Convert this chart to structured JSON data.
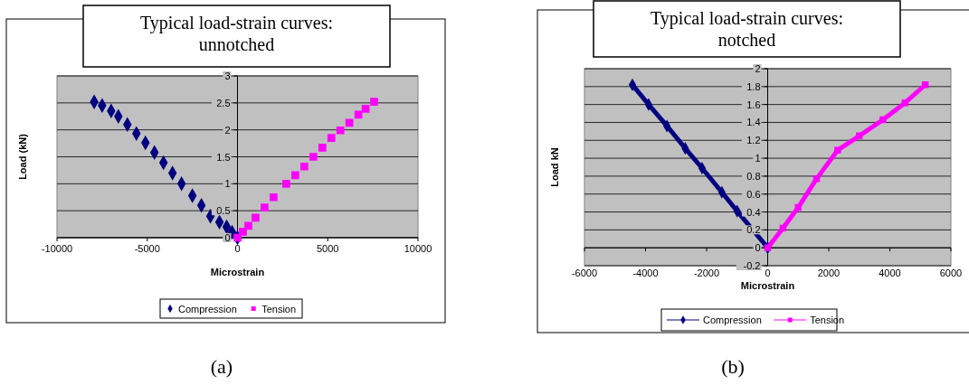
{
  "chart_data": [
    {
      "type": "scatter",
      "title": "Typical load-strain curves: unnotched",
      "xlabel": "Microstrain",
      "ylabel": "Load (kN)",
      "xlim": [
        -10000,
        10000
      ],
      "xticks": [
        -10000,
        -5000,
        0,
        5000,
        10000
      ],
      "ylim": [
        0,
        3
      ],
      "yticks": [
        0,
        0.5,
        1,
        1.5,
        2,
        2.5,
        3
      ],
      "grid": "y",
      "legend": "bottom",
      "annotations": [
        "(a)"
      ],
      "series": [
        {
          "name": "Compression",
          "color": "#000080",
          "marker": "diamond",
          "x": [
            0,
            -300,
            -600,
            -1000,
            -1500,
            -2000,
            -2500,
            -3100,
            -3600,
            -4100,
            -4600,
            -5100,
            -5600,
            -6100,
            -6600,
            -7000,
            -7500,
            -7940
          ],
          "values": [
            0,
            0.1,
            0.2,
            0.29,
            0.4,
            0.6,
            0.78,
            1.0,
            1.2,
            1.39,
            1.58,
            1.76,
            1.93,
            2.1,
            2.25,
            2.35,
            2.45,
            2.52
          ]
        },
        {
          "name": "Tension",
          "color": "#ff00ff",
          "marker": "square",
          "x": [
            0,
            300,
            600,
            1000,
            1500,
            2000,
            2700,
            3200,
            3700,
            4200,
            4700,
            5200,
            5700,
            6200,
            6700,
            7100,
            7570
          ],
          "values": [
            0,
            0.11,
            0.22,
            0.37,
            0.56,
            0.75,
            1.0,
            1.16,
            1.32,
            1.5,
            1.67,
            1.85,
            1.99,
            2.13,
            2.28,
            2.39,
            2.52
          ]
        }
      ]
    },
    {
      "type": "line",
      "title": "Typical load-strain curves: notched",
      "xlabel": "Microstrain",
      "ylabel": "Load kN",
      "xlim": [
        -6000,
        6000
      ],
      "xticks": [
        -6000,
        -4000,
        -2000,
        0,
        2000,
        4000,
        6000
      ],
      "ylim": [
        -0.2,
        2
      ],
      "yticks": [
        -0.2,
        0,
        0.2,
        0.4,
        0.6,
        0.8,
        1,
        1.2,
        1.4,
        1.6,
        1.8,
        2
      ],
      "grid": "y",
      "legend": "bottom",
      "annotations": [
        "(b)"
      ],
      "series": [
        {
          "name": "Compression",
          "color": "#000080",
          "marker": "diamond",
          "x": [
            0,
            -1000,
            -1500,
            -2150,
            -2700,
            -3300,
            -3900,
            -4430
          ],
          "values": [
            0,
            0.41,
            0.62,
            0.89,
            1.11,
            1.36,
            1.6,
            1.82
          ]
        },
        {
          "name": "Tension",
          "color": "#ff00ff",
          "marker": "square",
          "x": [
            0,
            500,
            1000,
            1600,
            2290,
            3000,
            3775,
            4500,
            5160
          ],
          "values": [
            0,
            0.22,
            0.45,
            0.77,
            1.09,
            1.25,
            1.43,
            1.62,
            1.82
          ]
        }
      ]
    }
  ]
}
